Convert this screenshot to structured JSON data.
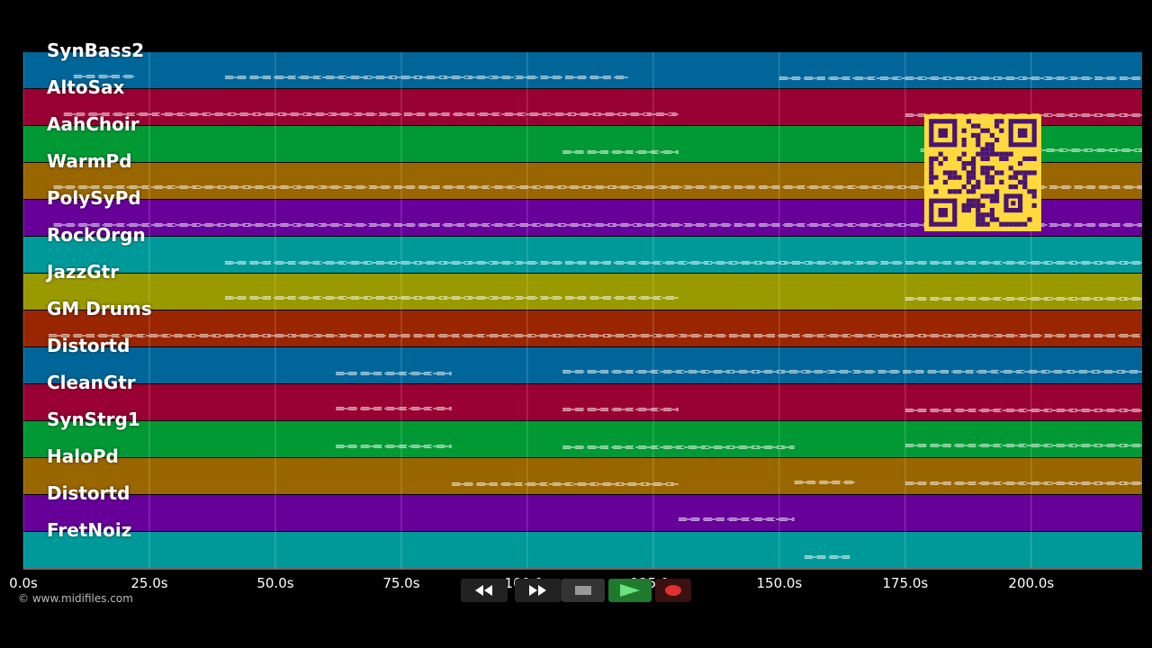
{
  "tracks": [
    {
      "name": "SynBass2",
      "color": "#006699"
    },
    {
      "name": "AltoSax",
      "color": "#990033"
    },
    {
      "name": "AahChoir",
      "color": "#009933"
    },
    {
      "name": "WarmPd",
      "color": "#996600"
    },
    {
      "name": "PolySyPd",
      "color": "#660099"
    },
    {
      "name": "RockOrgn",
      "color": "#009999"
    },
    {
      "name": "JazzGtr",
      "color": "#999900"
    },
    {
      "name": "GM Drums",
      "color": "#992600"
    },
    {
      "name": "Distortd",
      "color": "#006699"
    },
    {
      "name": "CleanGtr",
      "color": "#990033"
    },
    {
      "name": "SynStrg1",
      "color": "#009933"
    },
    {
      "name": "HaloPd",
      "color": "#996600"
    },
    {
      "name": "Distortd",
      "color": "#660099"
    },
    {
      "name": "FretNoiz",
      "color": "#009999"
    }
  ],
  "ticks": [
    "0.0s",
    "25.0s",
    "50.0s",
    "75.0s",
    "100.0s",
    "125.0s",
    "150.0s",
    "175.0s",
    "200.0s"
  ],
  "tick_seconds": [
    0,
    25,
    50,
    75,
    100,
    125,
    150,
    175,
    200
  ],
  "time_range_s": [
    0,
    222
  ],
  "copyright": "© www.midifiles.com",
  "transport": {
    "rewind_icon": "rewind-icon",
    "forward_icon": "fast-forward-icon",
    "stop_icon": "stop-icon",
    "play_icon": "play-icon",
    "record_icon": "record-icon"
  },
  "note_segments": [
    [
      [
        10,
        22
      ],
      [
        40,
        120
      ],
      [
        150,
        222
      ]
    ],
    [
      [
        8,
        130
      ],
      [
        175,
        222
      ]
    ],
    [
      [
        107,
        130
      ],
      [
        178,
        222
      ]
    ],
    [
      [
        6,
        222
      ]
    ],
    [
      [
        6,
        222
      ]
    ],
    [
      [
        40,
        222
      ]
    ],
    [
      [
        40,
        130
      ],
      [
        175,
        222
      ]
    ],
    [
      [
        5,
        222
      ]
    ],
    [
      [
        62,
        85
      ],
      [
        107,
        222
      ]
    ],
    [
      [
        62,
        85
      ],
      [
        107,
        130
      ],
      [
        175,
        222
      ]
    ],
    [
      [
        62,
        85
      ],
      [
        107,
        153
      ],
      [
        175,
        222
      ]
    ],
    [
      [
        85,
        130
      ],
      [
        153,
        165
      ],
      [
        175,
        222
      ]
    ],
    [
      [
        130,
        153
      ]
    ],
    [
      [
        155,
        164
      ]
    ]
  ]
}
